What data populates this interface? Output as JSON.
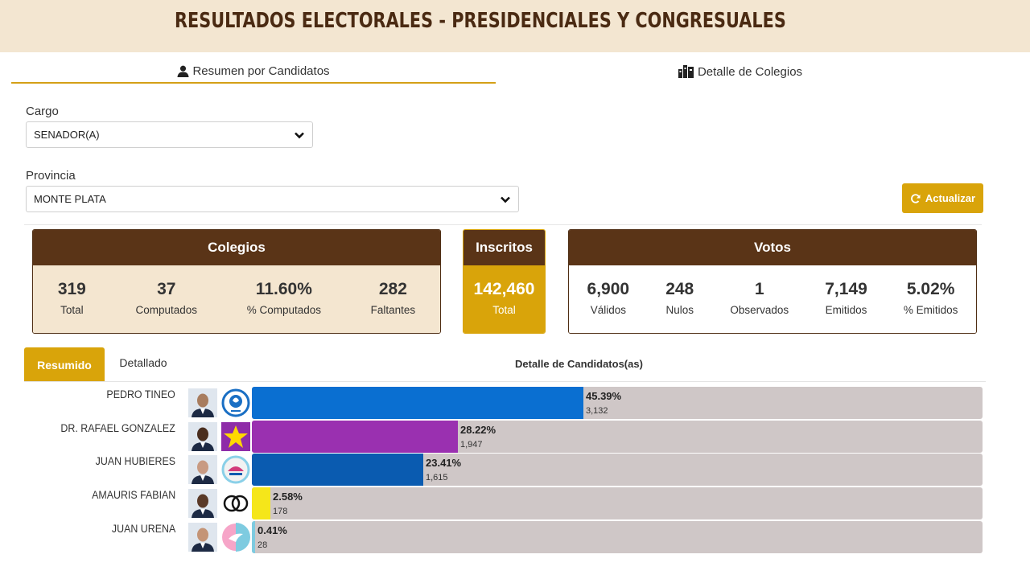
{
  "header": {
    "title": "RESULTADOS ELECTORALES - PRESIDENCIALES Y CONGRESUALES"
  },
  "tabs": [
    {
      "label": "Resumen por Candidatos",
      "icon": "user-icon",
      "active": true
    },
    {
      "label": "Detalle de Colegios",
      "icon": "building-icon",
      "active": false
    }
  ],
  "filters": {
    "cargo_label": "Cargo",
    "cargo_value": "SENADOR(A)",
    "provincia_label": "Provincia",
    "provincia_value": "MONTE PLATA",
    "refresh_label": "Actualizar"
  },
  "colegios": {
    "title": "Colegios",
    "stats": [
      {
        "value": "319",
        "label": "Total"
      },
      {
        "value": "37",
        "label": "Computados"
      },
      {
        "value": "11.60%",
        "label": "% Computados"
      },
      {
        "value": "282",
        "label": "Faltantes"
      }
    ]
  },
  "inscritos": {
    "title": "Inscritos",
    "value": "142,460",
    "label": "Total"
  },
  "votos": {
    "title": "Votos",
    "stats": [
      {
        "value": "6,900",
        "label": "Válidos"
      },
      {
        "value": "248",
        "label": "Nulos"
      },
      {
        "value": "1",
        "label": "Observados"
      },
      {
        "value": "7,149",
        "label": "Emitidos"
      },
      {
        "value": "5.02%",
        "label": "% Emitidos"
      }
    ]
  },
  "results_tabs": {
    "resumido": "Resumido",
    "detallado": "Detallado",
    "detalle_title": "Detalle de Candidatos(as)"
  },
  "candidates": [
    {
      "name": "PEDRO TINEO",
      "percent_label": "45.39%",
      "votes": "3,132",
      "share": 45.39,
      "color": "#0a6fd1",
      "logo": "fp-party-logo-icon"
    },
    {
      "name": "DR. RAFAEL GONZALEZ",
      "percent_label": "28.22%",
      "votes": "1,947",
      "share": 28.22,
      "color": "#9a30b0",
      "logo": "star-party-logo-icon"
    },
    {
      "name": "JUAN HUBIERES",
      "percent_label": "23.41%",
      "votes": "1,615",
      "share": 23.41,
      "color": "#0a5bb0",
      "logo": "prm-party-logo-icon"
    },
    {
      "name": "AMAURIS FABIAN",
      "percent_label": "2.58%",
      "votes": "178",
      "share": 2.58,
      "color": "#f5e61a",
      "logo": "rings-party-logo-icon"
    },
    {
      "name": "JUAN URENA",
      "percent_label": "0.41%",
      "votes": "28",
      "share": 0.41,
      "color": "#7ecbe0",
      "logo": "dove-party-logo-icon"
    }
  ],
  "colors": {
    "brown": "#5a3417",
    "gold": "#d9a40a",
    "cream": "#f4e6d0",
    "track": "#cfc7c7"
  }
}
